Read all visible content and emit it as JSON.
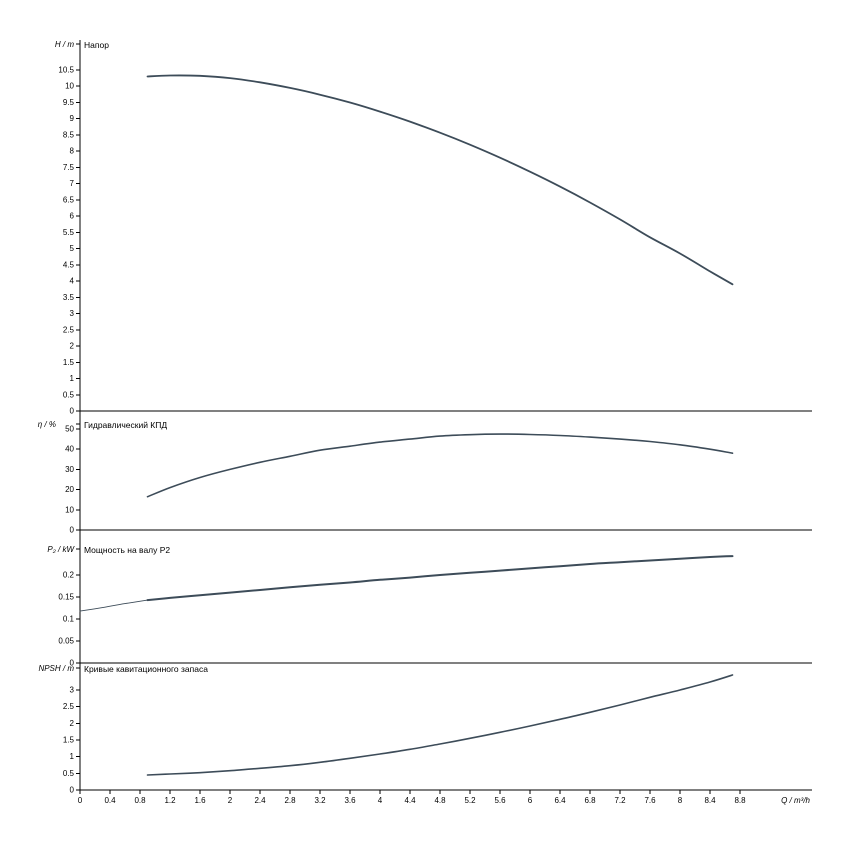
{
  "page": {
    "background": "#ffffff"
  },
  "chart_data": {
    "type": "line",
    "x_axis": {
      "label": "Q / m³/h",
      "min": 0,
      "max": 9.76,
      "tick_min": 0,
      "tick_max": 8.8,
      "tick_step": 0.4
    },
    "axis_color": "#000000",
    "curve_color": "#3d4c59",
    "grid": "off",
    "legend": "none",
    "panels": [
      {
        "id": "head",
        "title": "Напор",
        "ylabel": "H / m",
        "ymin": 0,
        "ymax": 10.5,
        "tick_step": 0.5,
        "series": [
          {
            "name": "H(Q)",
            "width": 1.8,
            "x": [
              0.9,
              1.2,
              1.6,
              2,
              2.4,
              2.8,
              3.2,
              3.6,
              4,
              4.4,
              4.8,
              5.2,
              5.6,
              6,
              6.4,
              6.8,
              7.2,
              7.6,
              8,
              8.4,
              8.7
            ],
            "y": [
              10.3,
              10.33,
              10.32,
              10.25,
              10.12,
              9.95,
              9.74,
              9.5,
              9.22,
              8.91,
              8.57,
              8.2,
              7.8,
              7.37,
              6.91,
              6.42,
              5.9,
              5.35,
              4.85,
              4.3,
              3.9
            ]
          }
        ]
      },
      {
        "id": "efficiency",
        "title": "Гидравлический КПД",
        "ylabel": "η / %",
        "ymin": 0,
        "ymax": 50,
        "tick_step": 10,
        "series": [
          {
            "name": "eta(Q)",
            "width": 1.6,
            "x": [
              0.9,
              1.2,
              1.6,
              2,
              2.4,
              2.8,
              3.2,
              3.6,
              4,
              4.4,
              4.8,
              5.2,
              5.6,
              6,
              6.4,
              6.8,
              7.2,
              7.6,
              8,
              8.4,
              8.7
            ],
            "y": [
              16.5,
              21,
              26,
              30,
              33.5,
              36.5,
              39.5,
              41.5,
              43.5,
              45,
              46.5,
              47.2,
              47.5,
              47.3,
              46.8,
              46,
              45,
              43.8,
              42.2,
              40,
              38
            ]
          }
        ]
      },
      {
        "id": "power",
        "title": "Мощность на валу P2",
        "ylabel": "P₂ / kW",
        "ymin": 0,
        "ymax": 0.2,
        "tick_step": 0.05,
        "series": [
          {
            "name": "P2 extrapolated",
            "width": 0.9,
            "x": [
              0,
              0.3,
              0.6,
              0.9
            ],
            "y": [
              0.118,
              0.126,
              0.135,
              0.143
            ]
          },
          {
            "name": "P2(Q)",
            "width": 2,
            "x": [
              0.9,
              1.2,
              1.6,
              2,
              2.4,
              2.8,
              3.2,
              3.6,
              4,
              4.4,
              4.8,
              5.2,
              5.6,
              6,
              6.4,
              6.8,
              7.2,
              7.6,
              8,
              8.4,
              8.7
            ],
            "y": [
              0.143,
              0.148,
              0.154,
              0.16,
              0.166,
              0.172,
              0.178,
              0.183,
              0.189,
              0.194,
              0.2,
              0.205,
              0.21,
              0.215,
              0.22,
              0.225,
              0.229,
              0.233,
              0.237,
              0.241,
              0.243
            ]
          }
        ]
      },
      {
        "id": "npsh",
        "title": "Кривые кавитационного запаса",
        "ylabel": "NPSH / m",
        "ymin": 0,
        "ymax": 3,
        "tick_step": 0.5,
        "series": [
          {
            "name": "NPSH(Q)",
            "width": 1.6,
            "x": [
              0.9,
              1.2,
              1.6,
              2,
              2.4,
              2.8,
              3.2,
              3.6,
              4,
              4.4,
              4.8,
              5.2,
              5.6,
              6,
              6.4,
              6.8,
              7.2,
              7.6,
              8,
              8.4,
              8.7
            ],
            "y": [
              0.45,
              0.48,
              0.52,
              0.58,
              0.65,
              0.73,
              0.83,
              0.95,
              1.08,
              1.22,
              1.38,
              1.55,
              1.73,
              1.92,
              2.12,
              2.33,
              2.55,
              2.78,
              3.0,
              3.24,
              3.45
            ]
          }
        ]
      }
    ]
  }
}
